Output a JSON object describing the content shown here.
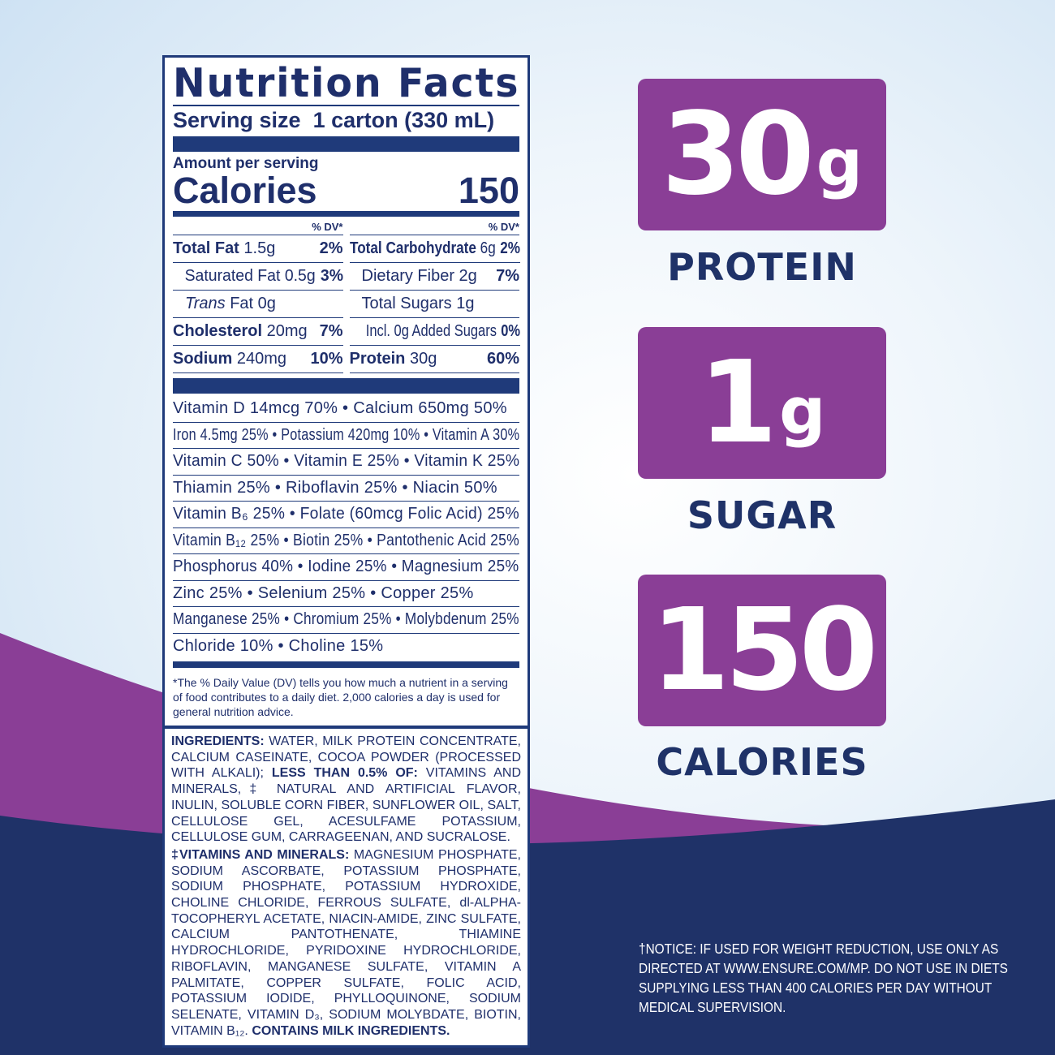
{
  "colors": {
    "navy": "#1f3268",
    "purple": "#8a3e96",
    "background": "#dbe9f6"
  },
  "label": {
    "title": "Nutrition Facts",
    "serving": "Serving size  1 carton (330 mL)",
    "amount": "Amount per serving",
    "calories_label": "Calories",
    "calories": "150",
    "dv_header": "% DV*",
    "left": [
      {
        "name": "Total Fat",
        "amt": "1.5g",
        "dv": "2%",
        "bold": true
      },
      {
        "name": "Saturated Fat",
        "amt": "0.5g",
        "dv": "3%",
        "bold": false
      },
      {
        "name": "Trans",
        "amt": "Fat 0g",
        "dv": "",
        "bold": false
      },
      {
        "name": "Cholesterol",
        "amt": "20mg",
        "dv": "7%",
        "bold": true
      },
      {
        "name": "Sodium",
        "amt": "240mg",
        "dv": "10%",
        "bold": true
      }
    ],
    "right": [
      {
        "name": "Total Carbohydrate",
        "amt": "6g",
        "dv": "2%",
        "bold": true
      },
      {
        "name": "Dietary Fiber",
        "amt": "2g",
        "dv": "7%",
        "bold": false
      },
      {
        "name": "Total Sugars",
        "amt": "1g",
        "dv": "",
        "bold": false
      },
      {
        "name": "Incl. 0g Added Sugars",
        "amt": "",
        "dv": "0%",
        "bold": false
      },
      {
        "name": "Protein",
        "amt": "30g",
        "dv": "60%",
        "bold": true
      }
    ],
    "vitamins": [
      "Vitamin D 14mcg 70% • Calcium 650mg 50%",
      "Iron 4.5mg 25% • Potassium 420mg 10% • Vitamin A 30%",
      "Vitamin C 50% • Vitamin E 25% • Vitamin K 25%",
      "Thiamin 25% • Riboflavin 25% • Niacin 50%",
      "Vitamin B₆ 25% • Folate (60mcg Folic Acid) 25%",
      "Vitamin B₁₂ 25% • Biotin 25% • Pantothenic Acid 25%",
      "Phosphorus 40% • Iodine 25% • Magnesium 25%",
      "Zinc 25% • Selenium 25% • Copper 25%",
      "Manganese 25% • Chromium 25% • Molybdenum 25%",
      "Chloride 10% • Choline 15%"
    ],
    "footnote": "*The % Daily Value (DV) tells you how much a nutrient in a serving of food contributes to a daily diet. 2,000 calories a day is used for general nutrition advice."
  },
  "ingredients": {
    "label": "INGREDIENTS:",
    "text1": " WATER, MILK PROTEIN CONCENTRATE, CALCIUM CASEINATE, COCOA POWDER (PROCESSED WITH ALKALI); ",
    "less": "LESS THAN 0.5% OF:",
    "text2": " VITAMINS AND MINERALS,‡ NATURAL AND ARTIFICIAL FLAVOR, INULIN, SOLUBLE CORN FIBER, SUNFLOWER OIL, SALT, CELLULOSE GEL, ACESULFAME POTASSIUM, CELLULOSE GUM, CARRAGEENAN, AND SUCRALOSE.",
    "vm_label": "‡VITAMINS AND MINERALS:",
    "vm_text": " MAGNESIUM PHOSPHATE, SODIUM ASCORBATE, POTASSIUM PHOSPHATE, SODIUM PHOSPHATE, POTASSIUM HYDROXIDE, CHOLINE CHLORIDE, FERROUS SULFATE, dl-ALPHA-TOCOPHERYL ACETATE, NIACIN-AMIDE, ZINC SULFATE, CALCIUM PANTOTHENATE, THIAMINE HYDROCHLORIDE, PYRIDOXINE HYDROCHLORIDE, RIBOFLAVIN, MANGANESE SULFATE, VITAMIN A PALMITATE, COPPER SULFATE, FOLIC ACID, POTASSIUM IODIDE, PHYLLOQUINONE, SODIUM SELENATE, VITAMIN D₃, SODIUM MOLYBDATE, BIOTIN, VITAMIN B₁₂. ",
    "contains": "CONTAINS MILK INGREDIENTS."
  },
  "badges": [
    {
      "number": "30",
      "unit": "g",
      "label": "PROTEIN"
    },
    {
      "number": "1",
      "unit": "g",
      "label": "SUGAR"
    },
    {
      "number": "150",
      "unit": "",
      "label": "CALORIES"
    }
  ],
  "notice": "†NOTICE: IF USED FOR WEIGHT REDUCTION, USE ONLY AS DIRECTED AT WWW.ENSURE.COM/MP. DO NOT USE IN DIETS SUPPLYING LESS THAN 400 CALORIES PER DAY WITHOUT MEDICAL SUPERVISION."
}
